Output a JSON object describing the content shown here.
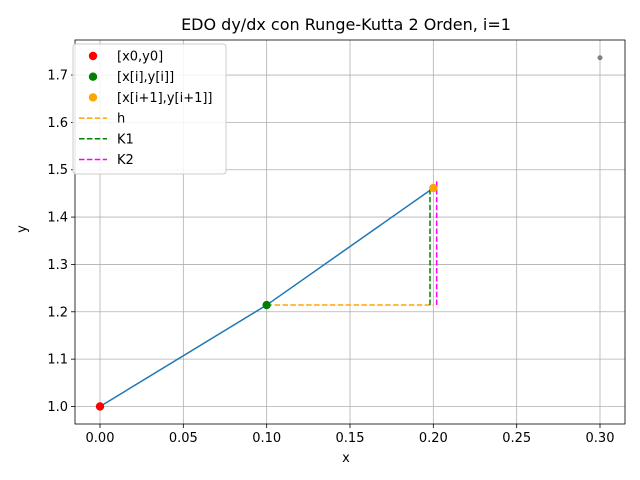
{
  "chart_data": {
    "type": "line",
    "title": "EDO dy/dx con Runge-Kutta 2 Orden, i=1",
    "xlabel": "x",
    "ylabel": "y",
    "xlim": [
      -0.015,
      0.315
    ],
    "ylim": [
      0.963,
      1.774
    ],
    "grid": true,
    "legend_position": "top-left",
    "xticks": [
      "0.00",
      "0.05",
      "0.10",
      "0.15",
      "0.20",
      "0.25",
      "0.30"
    ],
    "xtick_values": [
      0.0,
      0.05,
      0.1,
      0.15,
      0.2,
      0.25,
      0.3
    ],
    "yticks": [
      "1.0",
      "1.1",
      "1.2",
      "1.3",
      "1.4",
      "1.5",
      "1.6",
      "1.7"
    ],
    "ytick_values": [
      1.0,
      1.1,
      1.2,
      1.3,
      1.4,
      1.5,
      1.6,
      1.7
    ],
    "solution_line": {
      "color": "#1f77b4",
      "x": [
        0.0,
        0.1,
        0.2
      ],
      "y": [
        1.0,
        1.2142,
        1.4614
      ]
    },
    "extra_point": {
      "color": "#808080",
      "x": 0.3,
      "y": 1.7365
    },
    "points": [
      {
        "name": "[x0,y0]",
        "color": "#ff0000",
        "x": 0.0,
        "y": 1.0
      },
      {
        "name": "[x[i],y[i]]",
        "color": "#008000",
        "x": 0.1,
        "y": 1.2142
      },
      {
        "name": "[x[i+1],y[i+1]]",
        "color": "#ffa500",
        "x": 0.2,
        "y": 1.4614
      }
    ],
    "segments": [
      {
        "name": "h",
        "color": "#ffa500",
        "x": [
          0.1,
          0.2
        ],
        "y": [
          1.2142,
          1.2142
        ]
      },
      {
        "name": "K1",
        "color": "#008000",
        "x": [
          0.198,
          0.198
        ],
        "y": [
          1.2142,
          1.4614
        ]
      },
      {
        "name": "K2",
        "color": "#ff00ff",
        "x": [
          0.202,
          0.202
        ],
        "y": [
          1.2142,
          1.4756
        ]
      }
    ]
  }
}
